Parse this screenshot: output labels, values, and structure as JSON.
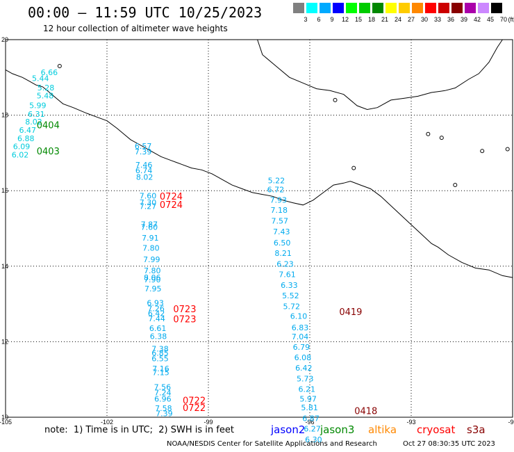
{
  "header": {
    "title": "00:00 – 11:59 UTC 10/25/2023",
    "subtitle": "12 hour collection of altimeter wave heights"
  },
  "colorbar": {
    "unit_label": "(ft)",
    "bins": [
      {
        "label": "3",
        "color": "#808080"
      },
      {
        "label": "6",
        "color": "#00ffff"
      },
      {
        "label": "9",
        "color": "#00aaff"
      },
      {
        "label": "12",
        "color": "#0000ff"
      },
      {
        "label": "15",
        "color": "#00ff00"
      },
      {
        "label": "18",
        "color": "#00cc00"
      },
      {
        "label": "21",
        "color": "#008800"
      },
      {
        "label": "24",
        "color": "#ffff00"
      },
      {
        "label": "27",
        "color": "#ffcc00"
      },
      {
        "label": "30",
        "color": "#ff8800"
      },
      {
        "label": "33",
        "color": "#ff0000"
      },
      {
        "label": "36",
        "color": "#cc0000"
      },
      {
        "label": "39",
        "color": "#880000"
      },
      {
        "label": "42",
        "color": "#aa00aa"
      },
      {
        "label": "45",
        "color": "#cc88ff"
      },
      {
        "label": "70",
        "color": "#000000"
      }
    ]
  },
  "map": {
    "lon_range": [
      -105,
      -90
    ],
    "lat_range": [
      10,
      20
    ],
    "lon_ticks": [
      "-105",
      "-102",
      "-99",
      "-96",
      "-93",
      "-90"
    ],
    "lat_ticks": [
      "20",
      "18",
      "16",
      "14",
      "12",
      "10"
    ],
    "track_labels": [
      {
        "text": "0404",
        "color": "#008800",
        "lon": -104.08,
        "lat": 17.65
      },
      {
        "text": "0403",
        "color": "#008800",
        "lon": -104.08,
        "lat": 16.96
      },
      {
        "text": "0724",
        "color": "#ff0000",
        "lon": -100.44,
        "lat": 15.76
      },
      {
        "text": "0724",
        "color": "#ff0000",
        "lon": -100.44,
        "lat": 15.54
      },
      {
        "text": "0723",
        "color": "#ff0000",
        "lon": -100.04,
        "lat": 12.78
      },
      {
        "text": "0723",
        "color": "#ff0000",
        "lon": -100.04,
        "lat": 12.51
      },
      {
        "text": "0722",
        "color": "#ff0000",
        "lon": -99.76,
        "lat": 10.36
      },
      {
        "text": "0722",
        "color": "#ff0000",
        "lon": -99.76,
        "lat": 10.17
      },
      {
        "text": "0419",
        "color": "#880000",
        "lon": -95.13,
        "lat": 12.71
      },
      {
        "text": "0418",
        "color": "#880000",
        "lon": -94.68,
        "lat": 10.08
      }
    ],
    "observations": [
      {
        "text": "6.66",
        "lon": -103.96,
        "lat": 19.06,
        "color": "#00ccdd"
      },
      {
        "text": "5.44",
        "lon": -104.22,
        "lat": 18.9,
        "color": "#00ccdd"
      },
      {
        "text": "5.28",
        "lon": -104.06,
        "lat": 18.66,
        "color": "#00ccdd"
      },
      {
        "text": "5.48",
        "lon": -104.08,
        "lat": 18.44,
        "color": "#00ccdd"
      },
      {
        "text": "5.99",
        "lon": -104.3,
        "lat": 18.19,
        "color": "#00ccdd"
      },
      {
        "text": "6.31",
        "lon": -104.34,
        "lat": 17.96,
        "color": "#00ccdd"
      },
      {
        "text": "8.02",
        "lon": -104.42,
        "lat": 17.75,
        "color": "#00ccdd"
      },
      {
        "text": "6.47",
        "lon": -104.6,
        "lat": 17.53,
        "color": "#00ccdd"
      },
      {
        "text": "6.88",
        "lon": -104.65,
        "lat": 17.31,
        "color": "#00ccdd"
      },
      {
        "text": "6.09",
        "lon": -104.78,
        "lat": 17.1,
        "color": "#00ccdd"
      },
      {
        "text": "6.02",
        "lon": -104.82,
        "lat": 16.88,
        "color": "#00ccdd"
      },
      {
        "text": "6.57",
        "lon": -101.18,
        "lat": 17.11,
        "color": "#00aaee"
      },
      {
        "text": "7.39",
        "lon": -101.18,
        "lat": 16.96,
        "color": "#00aaee"
      },
      {
        "text": "7.46",
        "lon": -101.16,
        "lat": 16.61,
        "color": "#00aaee"
      },
      {
        "text": "6.74",
        "lon": -101.16,
        "lat": 16.46,
        "color": "#00aaee"
      },
      {
        "text": "8.02",
        "lon": -101.14,
        "lat": 16.29,
        "color": "#00aaee"
      },
      {
        "text": "7.60",
        "lon": -101.04,
        "lat": 15.79,
        "color": "#00aaee"
      },
      {
        "text": "7.30",
        "lon": -101.04,
        "lat": 15.62,
        "color": "#00aaee"
      },
      {
        "text": "7.27",
        "lon": -101.04,
        "lat": 15.52,
        "color": "#00aaee"
      },
      {
        "text": "7.87",
        "lon": -101.0,
        "lat": 15.04,
        "color": "#00aaee"
      },
      {
        "text": "7.60",
        "lon": -101.0,
        "lat": 14.96,
        "color": "#00aaee"
      },
      {
        "text": "7.91",
        "lon": -100.97,
        "lat": 14.68,
        "color": "#00aaee"
      },
      {
        "text": "7.80",
        "lon": -100.95,
        "lat": 14.41,
        "color": "#00aaee"
      },
      {
        "text": "7.99",
        "lon": -100.93,
        "lat": 14.11,
        "color": "#00aaee"
      },
      {
        "text": "7.80",
        "lon": -100.91,
        "lat": 13.81,
        "color": "#00aaee"
      },
      {
        "text": "8.06",
        "lon": -100.91,
        "lat": 13.63,
        "color": "#00aaee"
      },
      {
        "text": "7.90",
        "lon": -100.91,
        "lat": 13.57,
        "color": "#00aaee"
      },
      {
        "text": "7.95",
        "lon": -100.89,
        "lat": 13.33,
        "color": "#00aaee"
      },
      {
        "text": "6.93",
        "lon": -100.82,
        "lat": 12.96,
        "color": "#00aaee"
      },
      {
        "text": "7.26",
        "lon": -100.8,
        "lat": 12.81,
        "color": "#00aaee"
      },
      {
        "text": "6.42",
        "lon": -100.79,
        "lat": 12.68,
        "color": "#00aaee"
      },
      {
        "text": "7.44",
        "lon": -100.78,
        "lat": 12.54,
        "color": "#00aaee"
      },
      {
        "text": "6.61",
        "lon": -100.75,
        "lat": 12.28,
        "color": "#00aaee"
      },
      {
        "text": "6.38",
        "lon": -100.73,
        "lat": 12.07,
        "color": "#00aaee"
      },
      {
        "text": "7.38",
        "lon": -100.68,
        "lat": 11.74,
        "color": "#00aaee"
      },
      {
        "text": "6.85",
        "lon": -100.68,
        "lat": 11.63,
        "color": "#00aaee"
      },
      {
        "text": "6.55",
        "lon": -100.68,
        "lat": 11.48,
        "color": "#00aaee"
      },
      {
        "text": "7.16",
        "lon": -100.66,
        "lat": 11.22,
        "color": "#00aaee"
      },
      {
        "text": "7.15",
        "lon": -100.66,
        "lat": 11.11,
        "color": "#00aaee"
      },
      {
        "text": "7.56",
        "lon": -100.61,
        "lat": 10.73,
        "color": "#00aaee"
      },
      {
        "text": "7.24",
        "lon": -100.6,
        "lat": 10.58,
        "color": "#00aaee"
      },
      {
        "text": "6.96",
        "lon": -100.6,
        "lat": 10.41,
        "color": "#00aaee"
      },
      {
        "text": "7.58",
        "lon": -100.58,
        "lat": 10.17,
        "color": "#00aaee"
      },
      {
        "text": "7.39",
        "lon": -100.56,
        "lat": 10.03,
        "color": "#00aaee"
      },
      {
        "text": "5.22",
        "lon": -97.24,
        "lat": 16.2,
        "color": "#00aaee"
      },
      {
        "text": "6.72",
        "lon": -97.26,
        "lat": 15.96,
        "color": "#00aaee"
      },
      {
        "text": "7.93",
        "lon": -97.18,
        "lat": 15.68,
        "color": "#00aaee"
      },
      {
        "text": "7.18",
        "lon": -97.16,
        "lat": 15.41,
        "color": "#00aaee"
      },
      {
        "text": "7.57",
        "lon": -97.14,
        "lat": 15.13,
        "color": "#00aaee"
      },
      {
        "text": "7.43",
        "lon": -97.09,
        "lat": 14.84,
        "color": "#00aaee"
      },
      {
        "text": "6.50",
        "lon": -97.07,
        "lat": 14.55,
        "color": "#00aaee"
      },
      {
        "text": "8.21",
        "lon": -97.04,
        "lat": 14.27,
        "color": "#00aaee"
      },
      {
        "text": "6.23",
        "lon": -96.98,
        "lat": 13.99,
        "color": "#00aaee"
      },
      {
        "text": "7.61",
        "lon": -96.92,
        "lat": 13.71,
        "color": "#00aaee"
      },
      {
        "text": "6.33",
        "lon": -96.86,
        "lat": 13.43,
        "color": "#00aaee"
      },
      {
        "text": "5.52",
        "lon": -96.82,
        "lat": 13.15,
        "color": "#00aaee"
      },
      {
        "text": "5.72",
        "lon": -96.79,
        "lat": 12.86,
        "color": "#00aaee"
      },
      {
        "text": "6.10",
        "lon": -96.58,
        "lat": 12.61,
        "color": "#00aaee"
      },
      {
        "text": "6.83",
        "lon": -96.54,
        "lat": 12.3,
        "color": "#00aaee"
      },
      {
        "text": "7.04",
        "lon": -96.54,
        "lat": 12.06,
        "color": "#00aaee"
      },
      {
        "text": "6.79",
        "lon": -96.5,
        "lat": 11.79,
        "color": "#00aaee"
      },
      {
        "text": "6.08",
        "lon": -96.46,
        "lat": 11.51,
        "color": "#00aaee"
      },
      {
        "text": "6.42",
        "lon": -96.43,
        "lat": 11.23,
        "color": "#00aaee"
      },
      {
        "text": "5.73",
        "lon": -96.39,
        "lat": 10.95,
        "color": "#00aaee"
      },
      {
        "text": "6.21",
        "lon": -96.34,
        "lat": 10.67,
        "color": "#00aaee"
      },
      {
        "text": "5.97",
        "lon": -96.3,
        "lat": 10.41,
        "color": "#00aaee"
      },
      {
        "text": "5.81",
        "lon": -96.26,
        "lat": 10.18,
        "color": "#00aaee"
      },
      {
        "text": "6.87",
        "lon": -96.22,
        "lat": 9.9,
        "color": "#00aaee"
      },
      {
        "text": "6.27",
        "lon": -96.18,
        "lat": 9.62,
        "color": "#00aaee"
      },
      {
        "text": "6.30",
        "lon": -96.14,
        "lat": 9.34,
        "color": "#00aaee"
      }
    ]
  },
  "footer": {
    "note": "note:  1) Time is in UTC;  2) SWH is in feet",
    "satellites": [
      {
        "name": "jason2",
        "color": "#0000ff"
      },
      {
        "name": "jason3",
        "color": "#008800"
      },
      {
        "name": "altika",
        "color": "#ff8800"
      },
      {
        "name": "cryosat",
        "color": "#ff0000"
      },
      {
        "name": "s3a",
        "color": "#880000"
      }
    ],
    "credit": "NOAA/NESDIS Center for Satellite Applications and Research",
    "timestamp": "Oct 27 08:30:35 UTC 2023"
  }
}
